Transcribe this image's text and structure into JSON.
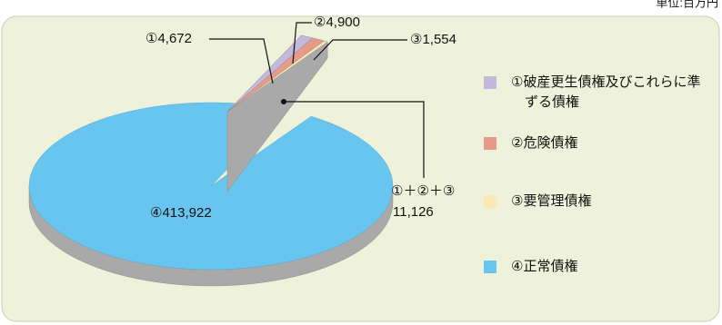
{
  "chart_data": {
    "type": "pie",
    "unit": "単位:百万円",
    "categories": [
      "①破産更生債権及びこれらに準ずる債権",
      "②危険債権",
      "③要管理債権",
      "④正常債権"
    ],
    "values": [
      4672,
      4900,
      1554,
      413922
    ],
    "value_labels": [
      "①4,672",
      "②4,900",
      "③1,554",
      "④413,922"
    ],
    "colors": [
      "#c3b9dc",
      "#e89a88",
      "#fbe9b3",
      "#68c5ef"
    ],
    "annotations": [
      "①＋②＋③",
      "11,126"
    ],
    "legend": "right"
  }
}
